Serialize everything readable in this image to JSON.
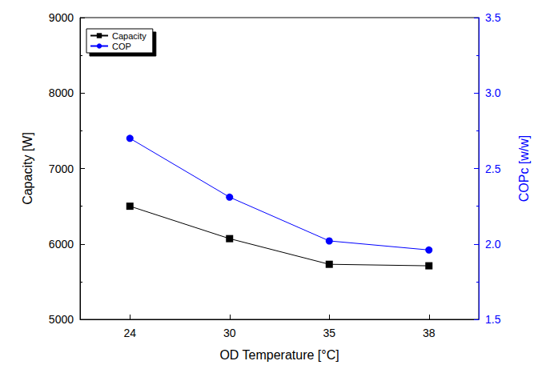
{
  "chart_data": {
    "type": "line",
    "x_label": "OD Temperature [°C]",
    "y_label": "Capacity [W]",
    "y2_label": "COPc [w/w]",
    "categories": [
      "24",
      "30",
      "35",
      "38"
    ],
    "series": [
      {
        "name": "Capacity",
        "color": "#000000",
        "marker": "square",
        "values": [
          6500,
          6070,
          5730,
          5710
        ]
      },
      {
        "name": "COP",
        "color": "#0000ff",
        "marker": "circle",
        "axis": "y2",
        "values": [
          2.7,
          2.31,
          2.02,
          1.96
        ]
      }
    ],
    "ylim": [
      5000,
      9000
    ],
    "yticks": [
      5000,
      6000,
      7000,
      8000,
      9000
    ],
    "y2lim": [
      1.5,
      3.5
    ],
    "y2ticks": [
      1.5,
      {
        "value": 2,
        "label": "2.0"
      },
      2.5,
      {
        "value": 3,
        "label": "3.0"
      },
      3.5
    ],
    "legend": "upper left"
  }
}
